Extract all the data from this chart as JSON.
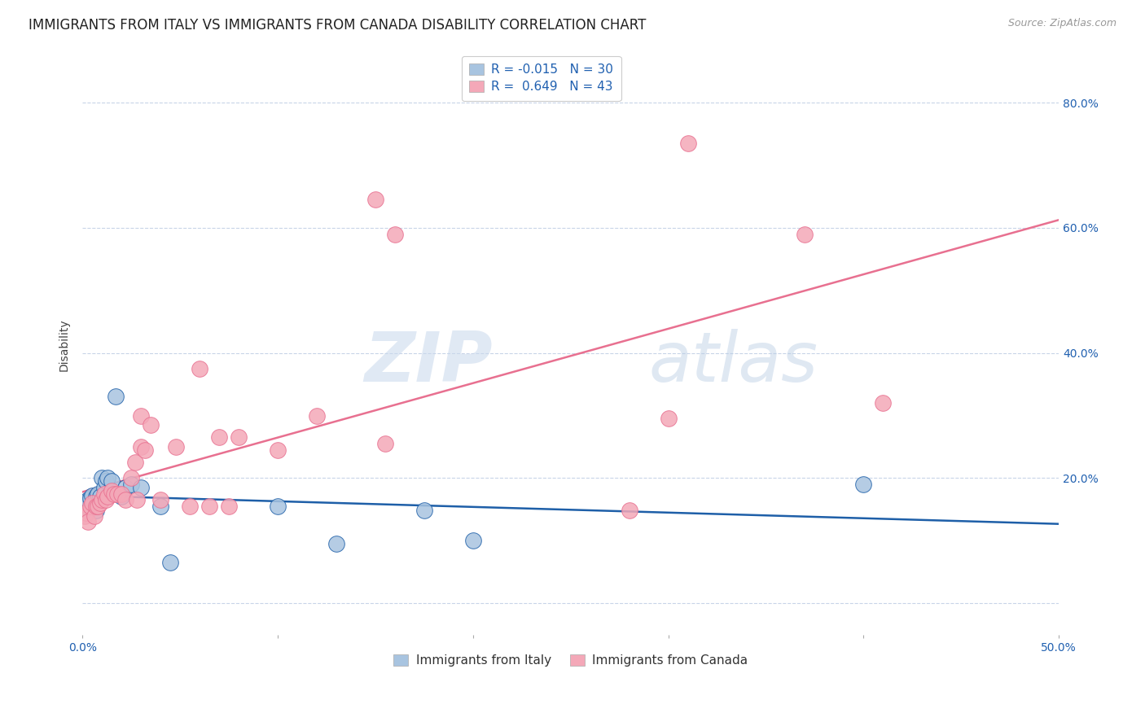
{
  "title": "IMMIGRANTS FROM ITALY VS IMMIGRANTS FROM CANADA DISABILITY CORRELATION CHART",
  "source": "Source: ZipAtlas.com",
  "ylabel": "Disability",
  "xlim": [
    0.0,
    0.5
  ],
  "ylim": [
    -0.05,
    0.875
  ],
  "yticks": [
    0.0,
    0.2,
    0.4,
    0.6,
    0.8
  ],
  "xticks": [
    0.0,
    0.1,
    0.2,
    0.3,
    0.4,
    0.5
  ],
  "xtick_labels": [
    "0.0%",
    "",
    "",
    "",
    "",
    "50.0%"
  ],
  "ytick_labels_right": [
    "",
    "20.0%",
    "40.0%",
    "60.0%",
    "80.0%"
  ],
  "italy_color": "#a8c4e0",
  "canada_color": "#f4a8b8",
  "italy_line_color": "#1e5fa8",
  "canada_line_color": "#e87090",
  "italy_R": -0.015,
  "italy_N": 30,
  "canada_R": 0.649,
  "canada_N": 43,
  "italy_x": [
    0.001,
    0.002,
    0.002,
    0.003,
    0.003,
    0.004,
    0.005,
    0.005,
    0.006,
    0.007,
    0.007,
    0.008,
    0.009,
    0.01,
    0.011,
    0.012,
    0.013,
    0.015,
    0.017,
    0.02,
    0.022,
    0.025,
    0.03,
    0.04,
    0.045,
    0.1,
    0.13,
    0.175,
    0.2,
    0.4
  ],
  "italy_y": [
    0.148,
    0.152,
    0.16,
    0.155,
    0.165,
    0.168,
    0.172,
    0.155,
    0.16,
    0.17,
    0.148,
    0.175,
    0.17,
    0.2,
    0.185,
    0.195,
    0.2,
    0.195,
    0.33,
    0.17,
    0.185,
    0.19,
    0.185,
    0.155,
    0.065,
    0.155,
    0.095,
    0.148,
    0.1,
    0.19
  ],
  "canada_x": [
    0.001,
    0.002,
    0.003,
    0.004,
    0.005,
    0.006,
    0.007,
    0.008,
    0.009,
    0.01,
    0.011,
    0.012,
    0.013,
    0.015,
    0.016,
    0.018,
    0.02,
    0.022,
    0.025,
    0.027,
    0.028,
    0.03,
    0.03,
    0.032,
    0.035,
    0.04,
    0.048,
    0.055,
    0.06,
    0.065,
    0.07,
    0.075,
    0.08,
    0.1,
    0.12,
    0.15,
    0.155,
    0.16,
    0.28,
    0.3,
    0.31,
    0.37,
    0.41
  ],
  "canada_y": [
    0.14,
    0.145,
    0.13,
    0.155,
    0.16,
    0.14,
    0.155,
    0.155,
    0.16,
    0.165,
    0.175,
    0.165,
    0.17,
    0.18,
    0.175,
    0.175,
    0.175,
    0.165,
    0.2,
    0.225,
    0.165,
    0.25,
    0.3,
    0.245,
    0.285,
    0.165,
    0.25,
    0.155,
    0.375,
    0.155,
    0.265,
    0.155,
    0.265,
    0.245,
    0.3,
    0.645,
    0.255,
    0.59,
    0.148,
    0.295,
    0.735,
    0.59,
    0.32
  ],
  "watermark_zip": "ZIP",
  "watermark_atlas": "atlas",
  "background_color": "#ffffff",
  "grid_color": "#c8d4e8",
  "title_fontsize": 12,
  "axis_label_fontsize": 10,
  "tick_fontsize": 10,
  "legend_fontsize": 11
}
